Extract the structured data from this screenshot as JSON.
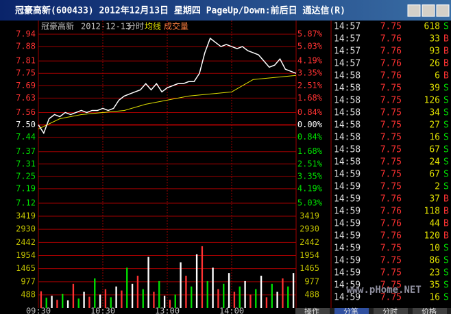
{
  "window": {
    "title": "冠豪高新(600433) 2012年12月13日 星期四 PageUp/Down:前后日 通达信(R)"
  },
  "chart": {
    "stock": "冠豪高新",
    "date": "2012-12-13",
    "mode": "分时",
    "avg_label": "均线",
    "vol_label": "成交量",
    "price_ticks": [
      7.94,
      7.88,
      7.81,
      7.75,
      7.69,
      7.63,
      7.56,
      {
        "value": 7.5,
        "label": "7.50"
      },
      7.44,
      7.37,
      7.31,
      7.25,
      7.19,
      7.12
    ],
    "pct_labels": [
      "5.87%",
      "5.03%",
      "4.19%",
      "3.35%",
      "2.51%",
      "1.68%",
      "0.84%",
      "0.00%",
      "0.84%",
      "1.68%",
      "2.51%",
      "3.35%",
      "4.19%",
      "5.03%"
    ],
    "vol_ticks": [
      3419,
      2930,
      2442,
      1954,
      1465,
      977,
      488
    ],
    "time_labels": [
      "09:30",
      "10:30",
      "13:00",
      "14:00"
    ],
    "price": [
      7.5,
      7.46,
      7.53,
      7.55,
      7.54,
      7.56,
      7.55,
      7.56,
      7.57,
      7.56,
      7.57,
      7.57,
      7.58,
      7.57,
      7.58,
      7.62,
      7.64,
      7.65,
      7.66,
      7.67,
      7.7,
      7.67,
      7.7,
      7.66,
      7.68,
      7.69,
      7.7,
      7.7,
      7.71,
      7.71,
      7.75,
      7.85,
      7.92,
      7.9,
      7.88,
      7.89,
      7.88,
      7.87,
      7.88,
      7.86,
      7.85,
      7.84,
      7.81,
      7.78,
      7.79,
      7.82,
      7.77,
      7.76,
      7.75
    ],
    "avg": [
      7.48,
      7.53,
      7.55,
      7.56,
      7.57,
      7.6,
      7.62,
      7.64,
      7.65,
      7.66,
      7.72,
      7.73,
      7.74
    ],
    "volume": [
      620,
      380,
      450,
      300,
      520,
      280,
      900,
      350,
      600,
      420,
      1100,
      500,
      700,
      400,
      800,
      650,
      1500,
      900,
      1200,
      700,
      1900,
      600,
      1000,
      450,
      300,
      500,
      1700,
      1200,
      800,
      2000,
      2300,
      1000,
      1500,
      700,
      900,
      1300,
      600,
      800,
      1000,
      500,
      700,
      1200,
      400,
      900,
      600,
      1100,
      800,
      1300
    ]
  },
  "trades": [
    [
      "14:57",
      "7.75",
      "618",
      "S"
    ],
    [
      "14:57",
      "7.76",
      "33",
      "B"
    ],
    [
      "14:57",
      "7.76",
      "93",
      "B"
    ],
    [
      "14:57",
      "7.76",
      "26",
      "B"
    ],
    [
      "14:58",
      "7.76",
      "6",
      "B"
    ],
    [
      "14:58",
      "7.75",
      "39",
      "S"
    ],
    [
      "14:58",
      "7.75",
      "126",
      "S"
    ],
    [
      "14:58",
      "7.75",
      "34",
      "S"
    ],
    [
      "14:58",
      "7.75",
      "27",
      "S"
    ],
    [
      "14:58",
      "7.75",
      "16",
      "S"
    ],
    [
      "14:58",
      "7.75",
      "67",
      "S"
    ],
    [
      "14:58",
      "7.75",
      "24",
      "S"
    ],
    [
      "14:59",
      "7.75",
      "67",
      "S"
    ],
    [
      "14:59",
      "7.75",
      "2",
      "S"
    ],
    [
      "14:59",
      "7.76",
      "37",
      "B"
    ],
    [
      "14:59",
      "7.76",
      "118",
      "B"
    ],
    [
      "14:59",
      "7.76",
      "44",
      "B"
    ],
    [
      "14:59",
      "7.76",
      "120",
      "B"
    ],
    [
      "14:59",
      "7.75",
      "10",
      "S"
    ],
    [
      "14:59",
      "7.75",
      "86",
      "S"
    ],
    [
      "14:59",
      "7.75",
      "23",
      "S"
    ],
    [
      "14:59",
      "7.75",
      "35",
      "S"
    ],
    [
      "14:59",
      "7.75",
      "16",
      "S"
    ]
  ],
  "watermark": "www.pHome.NET",
  "tabs": [
    "操作",
    "分笔",
    "分时",
    "价格"
  ]
}
